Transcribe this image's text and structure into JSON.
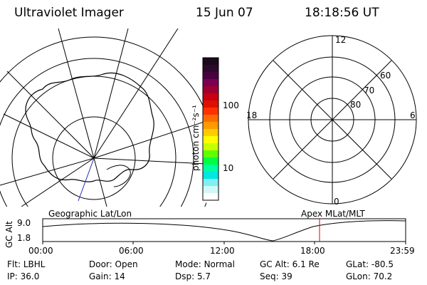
{
  "header": {
    "instrument": "Ultraviolet Imager",
    "date": "15 Jun 07",
    "time": "18:18:56 UT"
  },
  "colorbar": {
    "unit_label": "photon cm⁻²s⁻¹",
    "ticks": [
      "100",
      "10"
    ],
    "colors": [
      "#1a0a1a",
      "#2b0b2b",
      "#4a0040",
      "#7a0050",
      "#a00030",
      "#c80010",
      "#e01000",
      "#ff3000",
      "#ff6a00",
      "#ff9a00",
      "#ffcc00",
      "#ffff00",
      "#c8ff00",
      "#60ff00",
      "#00ff40",
      "#00ffa0",
      "#00e8e0",
      "#80f0f0",
      "#d0f8f8",
      "#ffffff"
    ]
  },
  "polar": {
    "mlt_labels": {
      "top": "12",
      "left": "18",
      "right": "6",
      "bottom": "0"
    },
    "lat_labels": [
      "60",
      "70",
      "80"
    ]
  },
  "timeline": {
    "left_label": "Geographic Lat/Lon",
    "right_label": "Apex MLat/MLT",
    "axis_title": "GC Alt",
    "y_ticks": [
      "9.0",
      "1.8"
    ],
    "x_ticks": [
      "00:00",
      "06:00",
      "12:00",
      "18:00",
      "23:59"
    ],
    "marker_color": "#e00000"
  },
  "status": {
    "row1": [
      {
        "key": "Flt:",
        "value": "LBHL"
      },
      {
        "key": "Door:",
        "value": "Open"
      },
      {
        "key": "Mode:",
        "value": "Normal"
      },
      {
        "key": "GC Alt:",
        "value": "6.1 Re"
      },
      {
        "key": "GLat:",
        "value": "-80.5"
      }
    ],
    "row2": [
      {
        "key": "IP:",
        "value": "36.0"
      },
      {
        "key": "Gain:",
        "value": "14"
      },
      {
        "key": "Dsp:",
        "value": "5.7"
      },
      {
        "key": "Seq:",
        "value": "39"
      },
      {
        "key": "GLon:",
        "value": "70.2"
      }
    ]
  }
}
